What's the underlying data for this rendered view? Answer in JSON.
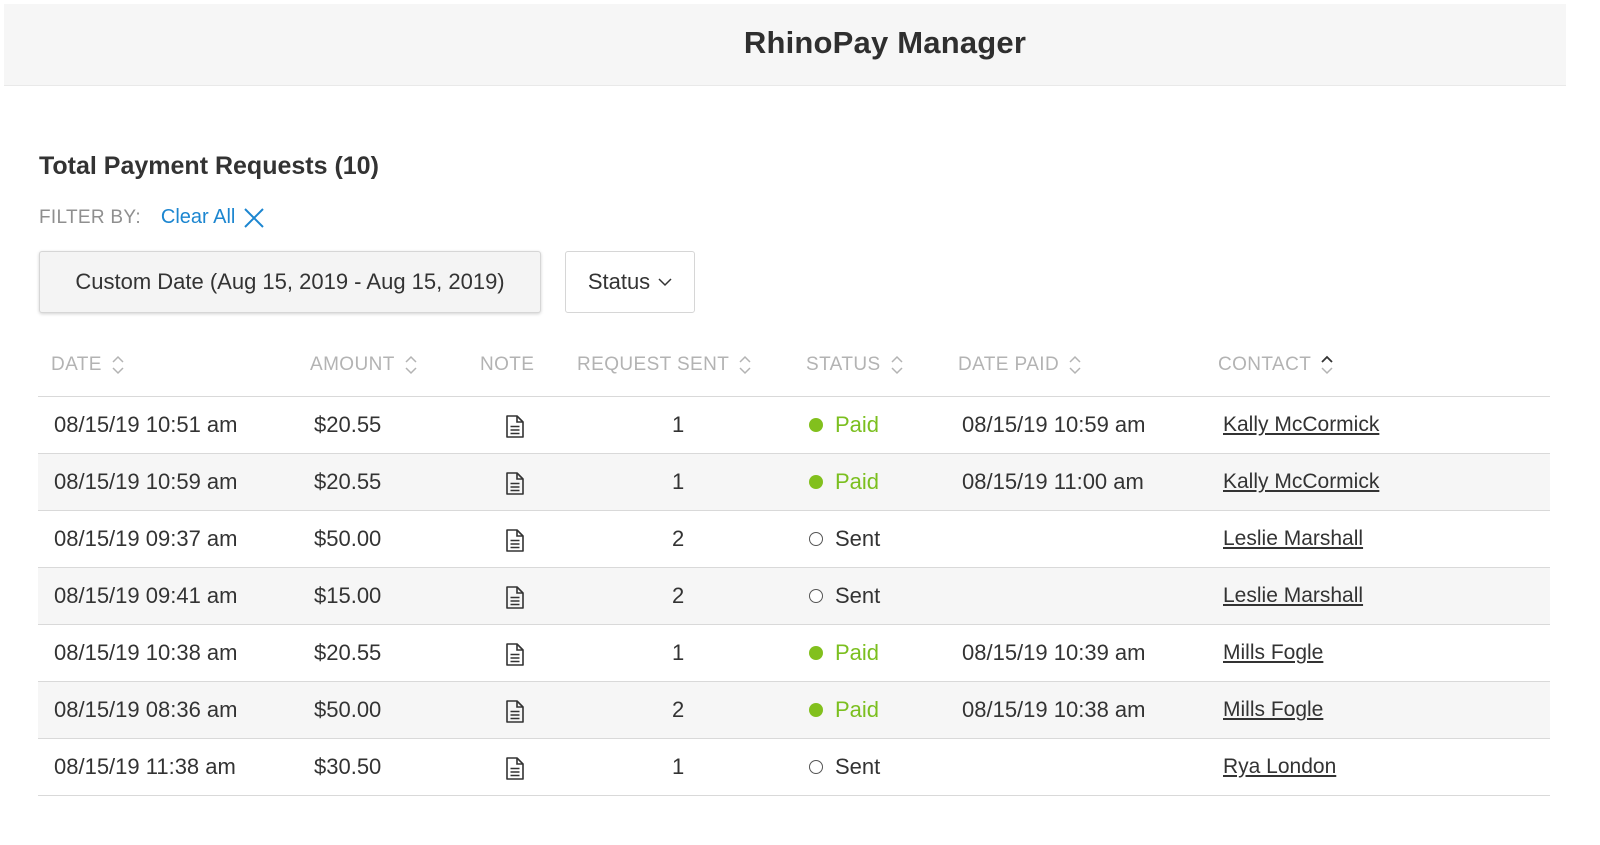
{
  "app": {
    "title": "RhinoPay Manager"
  },
  "page": {
    "title": "Total Payment Requests (10)"
  },
  "filters": {
    "label": "FILTER BY:",
    "clear_all": "Clear All",
    "date_button": "Custom Date (Aug 15, 2019 - Aug 15, 2019)",
    "status_button": "Status"
  },
  "colors": {
    "accent": "#1c86d0",
    "paid": "#82c01d",
    "header_bg": "#f6f6f6"
  },
  "table": {
    "headers": {
      "date": "DATE",
      "amount": "AMOUNT",
      "note": "NOTE",
      "request_sent": "REQUEST SENT",
      "status": "STATUS",
      "date_paid": "DATE PAID",
      "contact": "CONTACT"
    },
    "rows": [
      {
        "date": "08/15/19 10:51 am",
        "amount": "$20.55",
        "request_sent": "1",
        "status": "Paid",
        "date_paid": "08/15/19 10:59 am",
        "contact": "Kally McCormick"
      },
      {
        "date": "08/15/19 10:59 am",
        "amount": "$20.55",
        "request_sent": "1",
        "status": "Paid",
        "date_paid": "08/15/19 11:00 am",
        "contact": "Kally McCormick"
      },
      {
        "date": "08/15/19 09:37 am",
        "amount": "$50.00",
        "request_sent": "2",
        "status": "Sent",
        "date_paid": "",
        "contact": "Leslie Marshall"
      },
      {
        "date": "08/15/19 09:41 am",
        "amount": "$15.00",
        "request_sent": "2",
        "status": "Sent",
        "date_paid": "",
        "contact": "Leslie Marshall"
      },
      {
        "date": "08/15/19 10:38 am",
        "amount": "$20.55",
        "request_sent": "1",
        "status": "Paid",
        "date_paid": "08/15/19 10:39 am",
        "contact": "Mills Fogle"
      },
      {
        "date": "08/15/19 08:36 am",
        "amount": "$50.00",
        "request_sent": "2",
        "status": "Paid",
        "date_paid": "08/15/19 10:38 am",
        "contact": "Mills Fogle"
      },
      {
        "date": "08/15/19 11:38 am",
        "amount": "$30.50",
        "request_sent": "1",
        "status": "Sent",
        "date_paid": "",
        "contact": "Rya London"
      }
    ]
  }
}
